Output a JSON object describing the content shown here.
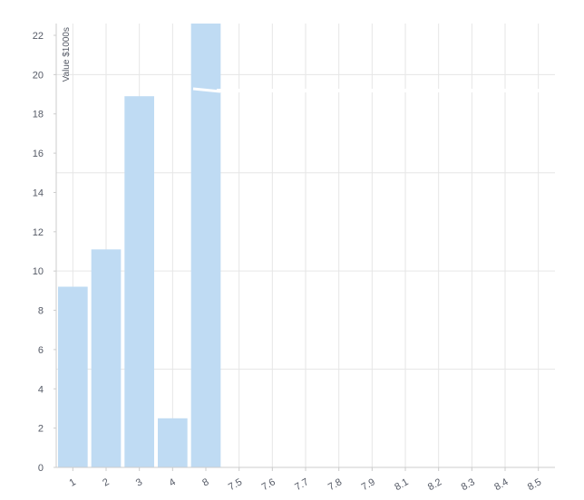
{
  "chart_data": {
    "type": "bar",
    "ylabel": "Value $1000s",
    "ylim": [
      0,
      22.6
    ],
    "y_ticks": [
      0,
      2,
      4,
      6,
      8,
      10,
      12,
      14,
      16,
      18,
      20,
      22
    ],
    "x_tick_labels": [
      "1",
      "2",
      "3",
      "4",
      "8",
      "7.5",
      "7.6",
      "7.7",
      "7.8",
      "7.9",
      "8.1",
      "8.2",
      "8.3",
      "8.4",
      "8.5"
    ],
    "categories": [
      "1",
      "2",
      "3",
      "4",
      "8"
    ],
    "values": [
      9.2,
      11.1,
      18.9,
      2.5,
      22.6
    ],
    "grid": true,
    "bar_color": "#bfdbf3",
    "grid_color": "#e6e6e6",
    "axis_color": "#cccccc"
  }
}
